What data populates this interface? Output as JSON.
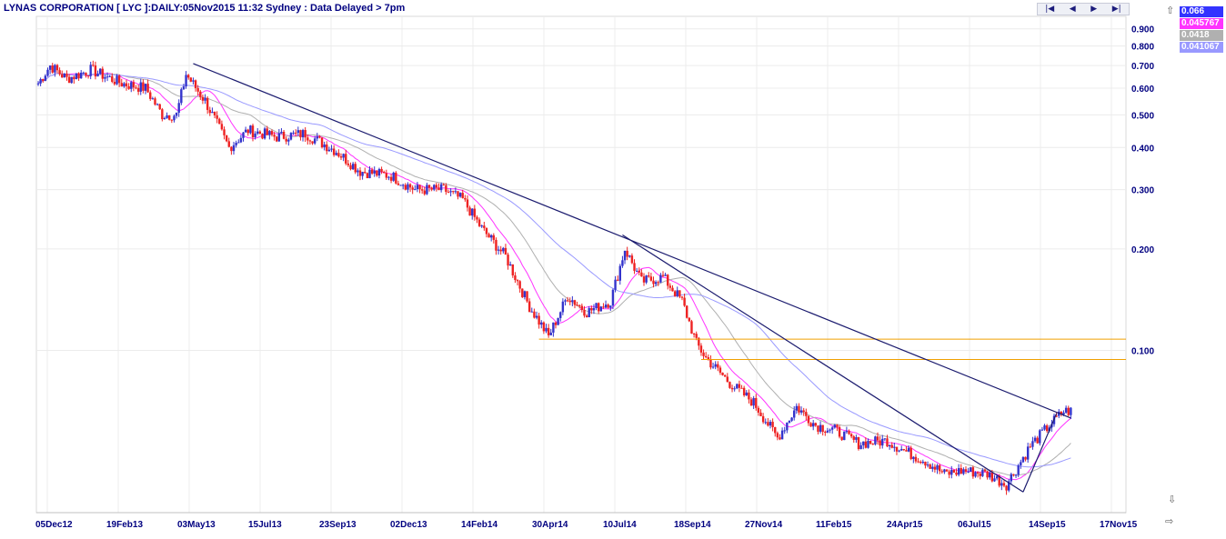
{
  "header": {
    "title": "LYNAS CORPORATION [ LYC ]:DAILY:05Nov2015 11:32 Sydney : Data Delayed > 7pm"
  },
  "nav": {
    "first": "|◀",
    "prev": "◀",
    "next": "▶",
    "last": "▶|"
  },
  "legend": [
    {
      "label": "0.066",
      "color": "#3333ff"
    },
    {
      "label": "0.045767",
      "color": "#ff33ff"
    },
    {
      "label": "0.0418",
      "color": "#b0b0b0"
    },
    {
      "label": "0.041067",
      "color": "#9999ff"
    }
  ],
  "colors": {
    "up": "#3333cc",
    "down": "#ee2222",
    "trendline": "#1a1a6e",
    "support": "#f0a000",
    "ma_fast": "#ff33ff",
    "ma_mid": "#b0b0b0",
    "ma_slow": "#9999ff",
    "grid": "#ececec"
  },
  "chart_data": {
    "type": "candlestick",
    "y_scale": "log",
    "ylim": [
      0.033,
      0.98
    ],
    "y_ticks": [
      0.9,
      0.8,
      0.7,
      0.6,
      0.5,
      0.4,
      0.3,
      0.2,
      0.1
    ],
    "y_tick_labels": [
      "0.900",
      "0.800",
      "0.700",
      "0.600",
      "0.500",
      "0.400",
      "0.300",
      "0.200",
      "0.100"
    ],
    "x_tick_labels": [
      "05Dec12",
      "19Feb13",
      "03May13",
      "15Jul13",
      "23Sep13",
      "02Dec13",
      "14Feb14",
      "30Apr14",
      "10Jul14",
      "18Sep14",
      "27Nov14",
      "11Feb15",
      "24Apr15",
      "06Jul15",
      "14Sep15",
      "17Nov15"
    ],
    "price_path": [
      [
        0,
        0.62
      ],
      [
        5,
        0.7
      ],
      [
        12,
        0.64
      ],
      [
        22,
        0.68
      ],
      [
        35,
        0.62
      ],
      [
        45,
        0.6
      ],
      [
        52,
        0.5
      ],
      [
        58,
        0.5
      ],
      [
        62,
        0.66
      ],
      [
        70,
        0.55
      ],
      [
        80,
        0.4
      ],
      [
        88,
        0.45
      ],
      [
        100,
        0.43
      ],
      [
        112,
        0.44
      ],
      [
        125,
        0.39
      ],
      [
        135,
        0.34
      ],
      [
        148,
        0.33
      ],
      [
        158,
        0.3
      ],
      [
        170,
        0.3
      ],
      [
        178,
        0.28
      ],
      [
        186,
        0.23
      ],
      [
        196,
        0.19
      ],
      [
        206,
        0.135
      ],
      [
        214,
        0.11
      ],
      [
        222,
        0.145
      ],
      [
        230,
        0.13
      ],
      [
        240,
        0.14
      ],
      [
        246,
        0.2
      ],
      [
        253,
        0.16
      ],
      [
        262,
        0.165
      ],
      [
        270,
        0.14
      ],
      [
        276,
        0.105
      ],
      [
        280,
        0.095
      ],
      [
        290,
        0.08
      ],
      [
        300,
        0.07
      ],
      [
        310,
        0.055
      ],
      [
        318,
        0.068
      ],
      [
        326,
        0.06
      ],
      [
        334,
        0.058
      ],
      [
        344,
        0.053
      ],
      [
        356,
        0.054
      ],
      [
        364,
        0.05
      ],
      [
        372,
        0.047
      ],
      [
        380,
        0.043
      ],
      [
        388,
        0.044
      ],
      [
        398,
        0.043
      ],
      [
        406,
        0.04
      ],
      [
        416,
        0.052
      ],
      [
        424,
        0.06
      ],
      [
        430,
        0.066
      ]
    ],
    "support_levels": [
      0.108,
      0.094
    ],
    "trendlines": [
      {
        "from": [
          65,
          0.71
        ],
        "to": [
          433,
          0.063
        ]
      },
      {
        "from": [
          245,
          0.22
        ],
        "to": [
          413,
          0.038
        ]
      },
      {
        "from": [
          413,
          0.038
        ],
        "to": [
          427,
          0.065
        ]
      }
    ],
    "moving_averages": [
      {
        "name": "0.045767",
        "window": 13
      },
      {
        "name": "0.0418",
        "window": 30
      },
      {
        "name": "0.041067",
        "window": 60
      }
    ],
    "last_value": 0.066
  }
}
